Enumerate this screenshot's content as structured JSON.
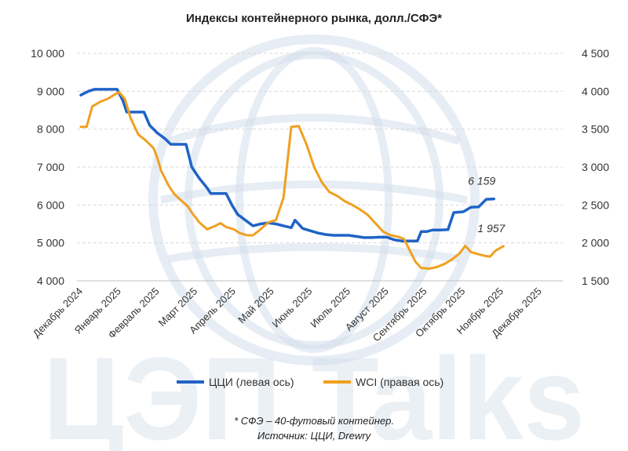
{
  "title": "Индексы контейнерного рынка, долл./СФЭ*",
  "watermark": "ЦЭП Talks",
  "footnote": "* СФЭ – 40-футовый контейнер.",
  "source": "Источник: ЦЦИ, Drewry",
  "chart_data": {
    "type": "line",
    "x_labels": [
      "Декабрь 2024",
      "Январь 2025",
      "Февраль 2025",
      "Март 2025",
      "Апрель 2025",
      "Май 2025",
      "Июнь 2025",
      "Июль 2025",
      "Август 2025",
      "Сентябрь 2025",
      "Октябрь 2025",
      "Ноябрь 2025",
      "Декабрь 2025"
    ],
    "y_left": {
      "min": 4000,
      "max": 10000,
      "ticks": [
        "4 000",
        "5 000",
        "6 000",
        "7 000",
        "8 000",
        "9 000",
        "10 000"
      ]
    },
    "y_right": {
      "min": 1500,
      "max": 4500,
      "ticks": [
        "1 500",
        "2 000",
        "2 500",
        "3 000",
        "3 500",
        "4 000",
        "4 500"
      ]
    },
    "grid": true,
    "legend_position": "bottom",
    "series": [
      {
        "name": "ЦЦИ (левая ось)",
        "axis": "left",
        "color": "#1f63c6",
        "end_label": "6 159",
        "points": [
          [
            0,
            8900
          ],
          [
            0.2,
            9000
          ],
          [
            0.35,
            9050
          ],
          [
            0.6,
            9050
          ],
          [
            0.8,
            9050
          ],
          [
            0.95,
            9050
          ],
          [
            1.1,
            8750
          ],
          [
            1.2,
            8450
          ],
          [
            1.5,
            8450
          ],
          [
            1.65,
            8450
          ],
          [
            1.8,
            8100
          ],
          [
            2.0,
            7900
          ],
          [
            2.2,
            7750
          ],
          [
            2.35,
            7600
          ],
          [
            2.6,
            7600
          ],
          [
            2.75,
            7600
          ],
          [
            2.9,
            7000
          ],
          [
            3.1,
            6700
          ],
          [
            3.3,
            6450
          ],
          [
            3.4,
            6300
          ],
          [
            3.6,
            6300
          ],
          [
            3.8,
            6300
          ],
          [
            3.95,
            6000
          ],
          [
            4.1,
            5750
          ],
          [
            4.3,
            5600
          ],
          [
            4.5,
            5450
          ],
          [
            4.7,
            5500
          ],
          [
            4.9,
            5530
          ],
          [
            5.1,
            5500
          ],
          [
            5.3,
            5450
          ],
          [
            5.5,
            5400
          ],
          [
            5.6,
            5600
          ],
          [
            5.8,
            5380
          ],
          [
            6.0,
            5320
          ],
          [
            6.2,
            5260
          ],
          [
            6.4,
            5220
          ],
          [
            6.6,
            5200
          ],
          [
            6.8,
            5200
          ],
          [
            7.0,
            5200
          ],
          [
            7.2,
            5170
          ],
          [
            7.4,
            5140
          ],
          [
            7.6,
            5140
          ],
          [
            7.8,
            5150
          ],
          [
            8.0,
            5150
          ],
          [
            8.2,
            5080
          ],
          [
            8.4,
            5050
          ],
          [
            8.6,
            5050
          ],
          [
            8.8,
            5050
          ],
          [
            8.9,
            5300
          ],
          [
            9.05,
            5300
          ],
          [
            9.2,
            5340
          ],
          [
            9.4,
            5340
          ],
          [
            9.6,
            5350
          ],
          [
            9.75,
            5800
          ],
          [
            10.0,
            5820
          ],
          [
            10.2,
            5940
          ],
          [
            10.4,
            5950
          ],
          [
            10.6,
            6150
          ],
          [
            10.8,
            6159
          ]
        ]
      },
      {
        "name": "WCI (правая ось)",
        "axis": "right",
        "color": "#f0a020",
        "end_label": "1 957",
        "points": [
          [
            0,
            3530
          ],
          [
            0.15,
            3530
          ],
          [
            0.3,
            3800
          ],
          [
            0.5,
            3860
          ],
          [
            0.7,
            3900
          ],
          [
            0.9,
            3960
          ],
          [
            1.0,
            3990
          ],
          [
            1.15,
            3900
          ],
          [
            1.3,
            3650
          ],
          [
            1.5,
            3430
          ],
          [
            1.7,
            3350
          ],
          [
            1.9,
            3250
          ],
          [
            2.0,
            3120
          ],
          [
            2.1,
            2950
          ],
          [
            2.3,
            2750
          ],
          [
            2.45,
            2640
          ],
          [
            2.6,
            2570
          ],
          [
            2.8,
            2480
          ],
          [
            2.9,
            2400
          ],
          [
            3.1,
            2270
          ],
          [
            3.3,
            2180
          ],
          [
            3.5,
            2220
          ],
          [
            3.65,
            2260
          ],
          [
            3.8,
            2210
          ],
          [
            4.0,
            2180
          ],
          [
            4.15,
            2130
          ],
          [
            4.35,
            2100
          ],
          [
            4.5,
            2100
          ],
          [
            4.7,
            2180
          ],
          [
            4.9,
            2270
          ],
          [
            5.1,
            2300
          ],
          [
            5.3,
            2600
          ],
          [
            5.5,
            3530
          ],
          [
            5.7,
            3540
          ],
          [
            5.9,
            3300
          ],
          [
            6.1,
            3000
          ],
          [
            6.3,
            2800
          ],
          [
            6.5,
            2670
          ],
          [
            6.7,
            2620
          ],
          [
            6.9,
            2550
          ],
          [
            7.1,
            2500
          ],
          [
            7.3,
            2440
          ],
          [
            7.5,
            2370
          ],
          [
            7.7,
            2260
          ],
          [
            7.9,
            2150
          ],
          [
            8.1,
            2100
          ],
          [
            8.3,
            2080
          ],
          [
            8.45,
            2050
          ],
          [
            8.6,
            1900
          ],
          [
            8.75,
            1750
          ],
          [
            8.9,
            1670
          ],
          [
            9.1,
            1660
          ],
          [
            9.3,
            1680
          ],
          [
            9.5,
            1720
          ],
          [
            9.7,
            1780
          ],
          [
            9.9,
            1860
          ],
          [
            10.05,
            1960
          ],
          [
            10.2,
            1880
          ],
          [
            10.4,
            1850
          ],
          [
            10.55,
            1830
          ],
          [
            10.7,
            1820
          ],
          [
            10.85,
            1900
          ],
          [
            11.05,
            1957
          ]
        ]
      }
    ]
  }
}
